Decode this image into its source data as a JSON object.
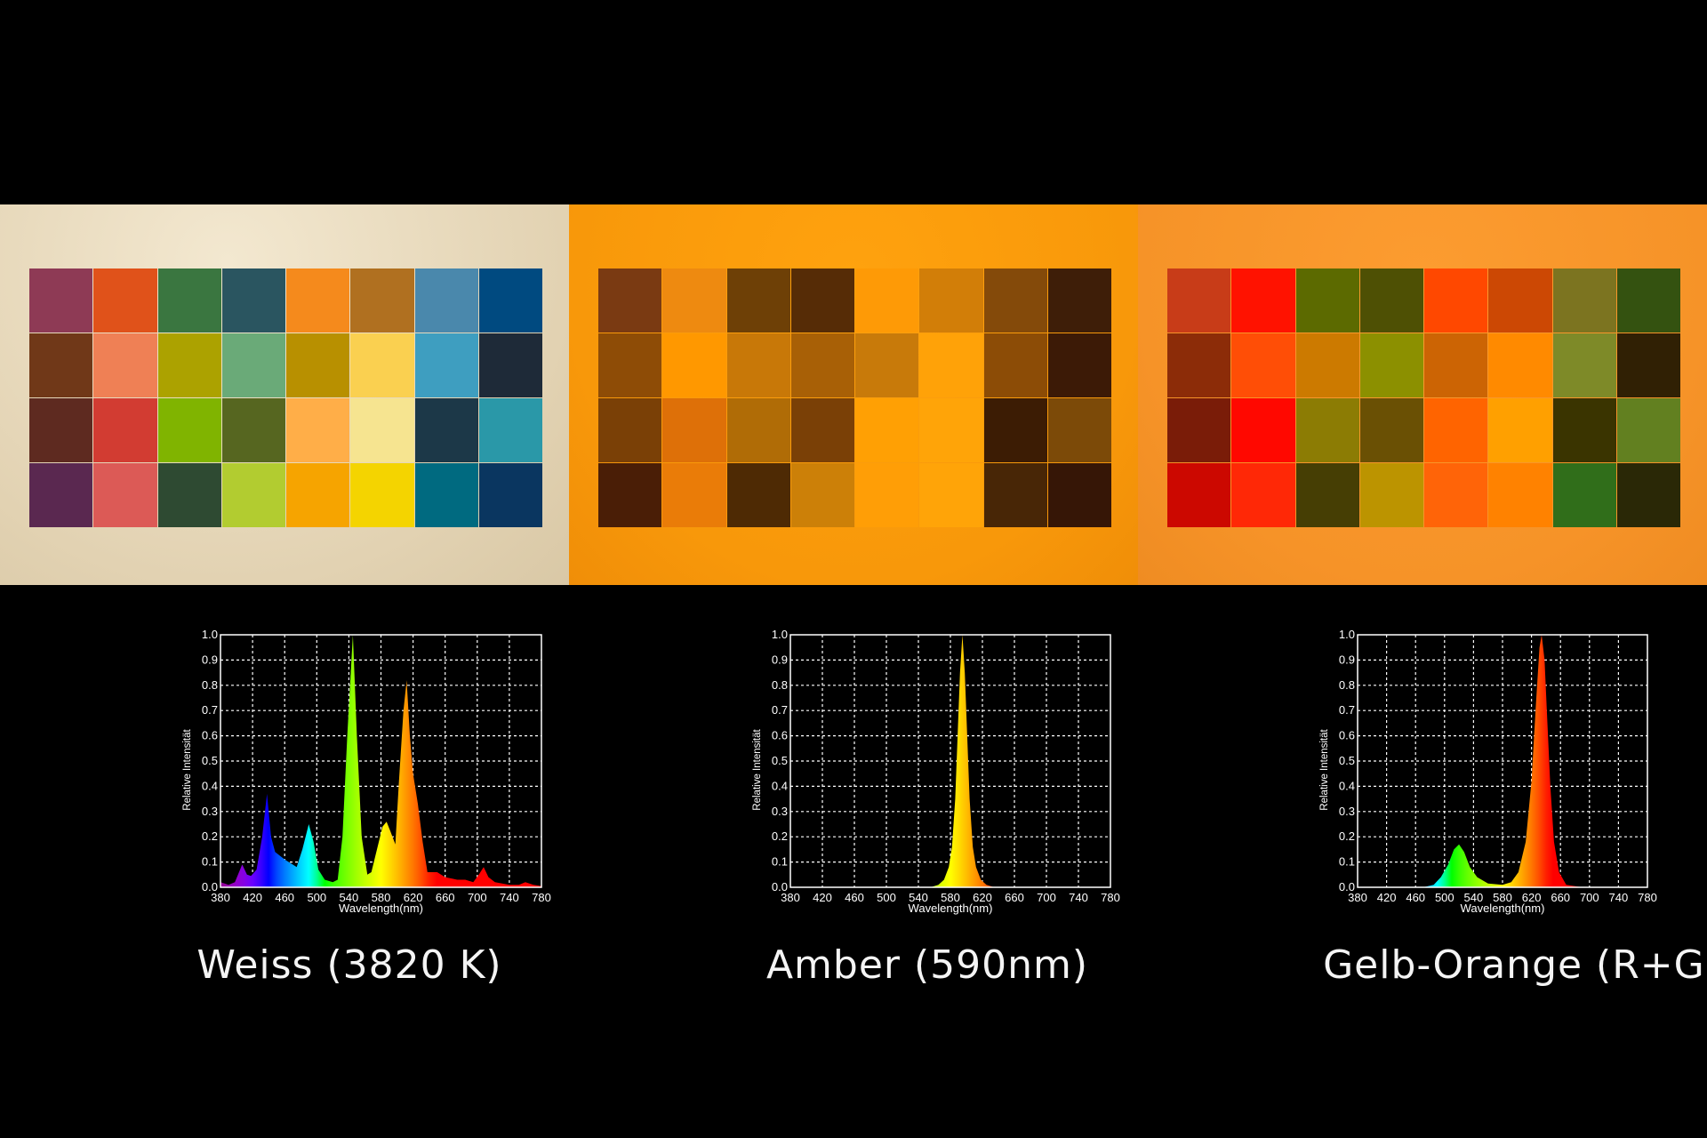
{
  "panels": [
    {
      "label": "Weiss (3820 K)",
      "background": "#e8dabd",
      "swatches": [
        [
          "#8e3a55",
          "#e0521a",
          "#3a7640",
          "#2a5560",
          "#f58a1c",
          "#b07020",
          "#4a88ac",
          "#004a80"
        ],
        [
          "#703818",
          "#ef8055",
          "#aca200",
          "#6aaa78",
          "#b89000",
          "#fad050",
          "#3e9ec0",
          "#1e2a38"
        ],
        [
          "#5e2a20",
          "#d23c32",
          "#80b400",
          "#566620",
          "#ffae48",
          "#f6e490",
          "#1c3848",
          "#2a98a8"
        ],
        [
          "#5a2850",
          "#dc5a56",
          "#2e4a32",
          "#b2cc30",
          "#f6a400",
          "#f4d400",
          "#006a80",
          "#0a3660"
        ]
      ]
    },
    {
      "label": "Amber (590nm)",
      "background": "#fa9b0c",
      "swatches": [
        [
          "#7a3a12",
          "#ee8a10",
          "#6e4006",
          "#562c06",
          "#fe9a06",
          "#d27e08",
          "#844a0a",
          "#3e1e08"
        ],
        [
          "#8e4c06",
          "#ff9800",
          "#c87808",
          "#a86006",
          "#c87a0a",
          "#ffa208",
          "#8c4c06",
          "#3c1a06"
        ],
        [
          "#7a4006",
          "#de7008",
          "#b06c06",
          "#7a4006",
          "#ffa004",
          "#ffa408",
          "#3c1c04",
          "#7c4a08"
        ],
        [
          "#4a1e06",
          "#ea7c08",
          "#4e2a04",
          "#cc8008",
          "#ff9e06",
          "#ffa408",
          "#482606",
          "#361606"
        ]
      ]
    },
    {
      "label": "Gelb-Orange (R+G)",
      "background": "#f8952a",
      "swatches": [
        [
          "#c83c18",
          "#ff1200",
          "#5c6a00",
          "#4e5004",
          "#ff4800",
          "#cc4804",
          "#7c7420",
          "#345210"
        ],
        [
          "#8c2c08",
          "#ff4e06",
          "#cc7a00",
          "#8c9000",
          "#cc6404",
          "#ff8a00",
          "#7e8a28",
          "#302004"
        ],
        [
          "#7a1c08",
          "#ff0800",
          "#8c7c04",
          "#6a5004",
          "#ff6400",
          "#ffa000",
          "#3a3400",
          "#628020"
        ],
        [
          "#cc0800",
          "#ff2806",
          "#463e04",
          "#bc9400",
          "#ff6408",
          "#ff8200",
          "#306e1a",
          "#2a2806"
        ]
      ]
    }
  ],
  "chart_data": [
    {
      "type": "area",
      "title": "Weiss (3820 K)",
      "xlabel": "Wavelength(nm)",
      "ylabel": "Relative Intensität",
      "xticks": [
        "380",
        "420",
        "460",
        "500",
        "540",
        "580",
        "620",
        "660",
        "700",
        "740",
        "780"
      ],
      "yticks": [
        "0.0",
        "0.1",
        "0.2",
        "0.3",
        "0.4",
        "0.5",
        "0.6",
        "0.7",
        "0.8",
        "0.9",
        "1.0"
      ],
      "xlim": [
        380,
        780
      ],
      "ylim": [
        0,
        1
      ],
      "grid": true,
      "points": [
        [
          380,
          0.02
        ],
        [
          390,
          0.01
        ],
        [
          398,
          0.02
        ],
        [
          407,
          0.09
        ],
        [
          413,
          0.05
        ],
        [
          418,
          0.045
        ],
        [
          425,
          0.07
        ],
        [
          432,
          0.2
        ],
        [
          438,
          0.37
        ],
        [
          443,
          0.2
        ],
        [
          448,
          0.14
        ],
        [
          460,
          0.11
        ],
        [
          470,
          0.09
        ],
        [
          475,
          0.08
        ],
        [
          482,
          0.15
        ],
        [
          490,
          0.25
        ],
        [
          496,
          0.18
        ],
        [
          502,
          0.07
        ],
        [
          510,
          0.03
        ],
        [
          520,
          0.02
        ],
        [
          526,
          0.03
        ],
        [
          532,
          0.2
        ],
        [
          538,
          0.6
        ],
        [
          545,
          1.0
        ],
        [
          550,
          0.6
        ],
        [
          556,
          0.2
        ],
        [
          563,
          0.05
        ],
        [
          568,
          0.06
        ],
        [
          575,
          0.15
        ],
        [
          582,
          0.24
        ],
        [
          587,
          0.26
        ],
        [
          592,
          0.22
        ],
        [
          598,
          0.17
        ],
        [
          602,
          0.4
        ],
        [
          608,
          0.7
        ],
        [
          612,
          0.82
        ],
        [
          616,
          0.6
        ],
        [
          620,
          0.45
        ],
        [
          626,
          0.33
        ],
        [
          632,
          0.18
        ],
        [
          638,
          0.06
        ],
        [
          650,
          0.06
        ],
        [
          660,
          0.04
        ],
        [
          675,
          0.03
        ],
        [
          685,
          0.03
        ],
        [
          695,
          0.02
        ],
        [
          702,
          0.05
        ],
        [
          708,
          0.08
        ],
        [
          714,
          0.04
        ],
        [
          722,
          0.02
        ],
        [
          740,
          0.01
        ],
        [
          752,
          0.01
        ],
        [
          760,
          0.02
        ],
        [
          770,
          0.01
        ],
        [
          780,
          0.005
        ]
      ]
    },
    {
      "type": "area",
      "title": "Amber (590nm)",
      "xlabel": "Wavelength(nm)",
      "ylabel": "Relative Intensität",
      "xticks": [
        "380",
        "420",
        "460",
        "500",
        "540",
        "580",
        "620",
        "660",
        "700",
        "740",
        "780"
      ],
      "yticks": [
        "0.0",
        "0.1",
        "0.2",
        "0.3",
        "0.4",
        "0.5",
        "0.6",
        "0.7",
        "0.8",
        "0.9",
        "1.0"
      ],
      "xlim": [
        380,
        780
      ],
      "ylim": [
        0,
        1
      ],
      "grid": true,
      "points": [
        [
          555,
          0
        ],
        [
          565,
          0.01
        ],
        [
          572,
          0.03
        ],
        [
          578,
          0.08
        ],
        [
          582,
          0.16
        ],
        [
          586,
          0.35
        ],
        [
          589,
          0.6
        ],
        [
          592,
          0.85
        ],
        [
          595,
          1.0
        ],
        [
          598,
          0.85
        ],
        [
          601,
          0.6
        ],
        [
          604,
          0.35
        ],
        [
          608,
          0.16
        ],
        [
          612,
          0.08
        ],
        [
          618,
          0.03
        ],
        [
          625,
          0.01
        ],
        [
          635,
          0
        ]
      ]
    },
    {
      "type": "area",
      "title": "Gelb-Orange (R+G)",
      "xlabel": "Wavelength(nm)",
      "ylabel": "Relative Intensität",
      "xticks": [
        "380",
        "420",
        "460",
        "500",
        "540",
        "580",
        "620",
        "660",
        "700",
        "740",
        "780"
      ],
      "yticks": [
        "0.0",
        "0.1",
        "0.2",
        "0.3",
        "0.4",
        "0.5",
        "0.6",
        "0.7",
        "0.8",
        "0.9",
        "1.0"
      ],
      "xlim": [
        380,
        780
      ],
      "ylim": [
        0,
        1
      ],
      "grid": true,
      "points": [
        [
          470,
          0
        ],
        [
          485,
          0.01
        ],
        [
          495,
          0.04
        ],
        [
          505,
          0.09
        ],
        [
          513,
          0.15
        ],
        [
          520,
          0.17
        ],
        [
          527,
          0.14
        ],
        [
          535,
          0.08
        ],
        [
          545,
          0.04
        ],
        [
          560,
          0.015
        ],
        [
          580,
          0.01
        ],
        [
          592,
          0.02
        ],
        [
          602,
          0.06
        ],
        [
          612,
          0.18
        ],
        [
          620,
          0.42
        ],
        [
          626,
          0.72
        ],
        [
          631,
          0.95
        ],
        [
          634,
          1.0
        ],
        [
          638,
          0.9
        ],
        [
          642,
          0.65
        ],
        [
          646,
          0.4
        ],
        [
          651,
          0.18
        ],
        [
          658,
          0.06
        ],
        [
          668,
          0.01
        ],
        [
          690,
          0
        ]
      ]
    }
  ]
}
